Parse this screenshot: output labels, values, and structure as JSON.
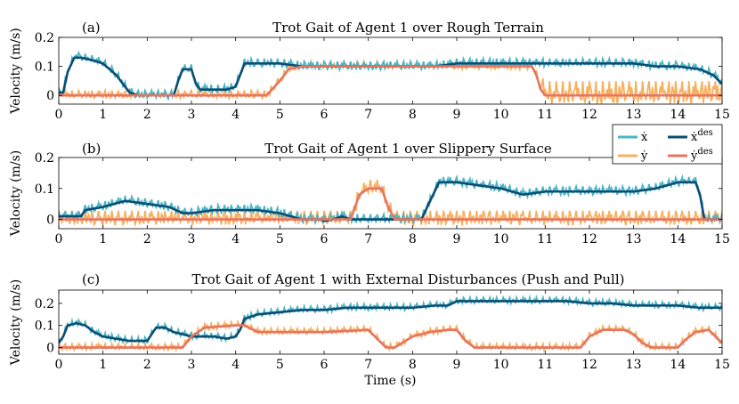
{
  "chart_data": [
    {
      "type": "line",
      "panel": "(a)",
      "title": "Trot Gait of Agent 1 over Rough Terrain",
      "xlabel": "",
      "ylabel": "Velocity (m/s)",
      "xlim": [
        0,
        15
      ],
      "ylim": [
        -0.03,
        0.2
      ],
      "xticks": [
        0,
        1,
        2,
        3,
        4,
        5,
        6,
        7,
        8,
        9,
        10,
        11,
        12,
        13,
        14,
        15
      ],
      "xticklabels": [
        "0",
        "1",
        "2",
        "3",
        "4",
        "5",
        "6",
        "7",
        "8",
        "9",
        "10",
        "11",
        "12",
        "13",
        "14",
        "15"
      ],
      "yticks": [
        0,
        0.1,
        0.2
      ],
      "yticklabels": [
        "0",
        "0.1",
        "0.2"
      ],
      "series": [
        {
          "name": "x_des",
          "color": "#0b4d73",
          "x": [
            0,
            0.1,
            0.2,
            0.35,
            0.5,
            0.8,
            1.0,
            1.3,
            1.5,
            1.6,
            1.8,
            2.0,
            2.3,
            2.6,
            2.7,
            2.8,
            3.0,
            3.1,
            3.2,
            3.5,
            3.8,
            4.0,
            4.1,
            4.2,
            4.5,
            4.8,
            5.0,
            5.5,
            6.0,
            6.5,
            7.0,
            7.5,
            8.0,
            8.5,
            9.0,
            9.5,
            10.0,
            10.5,
            11.0,
            11.5,
            12.0,
            12.5,
            13.0,
            13.5,
            14.0,
            14.5,
            14.8,
            15.0
          ],
          "y": [
            0.01,
            0.01,
            0.08,
            0.13,
            0.13,
            0.12,
            0.11,
            0.07,
            0.03,
            0.01,
            0.0,
            0.0,
            0.0,
            0.0,
            0.05,
            0.09,
            0.09,
            0.04,
            0.02,
            0.02,
            0.02,
            0.03,
            0.07,
            0.11,
            0.11,
            0.11,
            0.11,
            0.1,
            0.1,
            0.1,
            0.1,
            0.1,
            0.1,
            0.1,
            0.11,
            0.11,
            0.11,
            0.11,
            0.11,
            0.11,
            0.11,
            0.11,
            0.11,
            0.1,
            0.1,
            0.09,
            0.07,
            0.04
          ]
        },
        {
          "name": "y_des",
          "color": "#e67562",
          "x": [
            0,
            1,
            2,
            3,
            4,
            4.7,
            5.0,
            5.2,
            5.5,
            6,
            7,
            8,
            9,
            10,
            10.7,
            10.8,
            10.9,
            11.0,
            12,
            13,
            14,
            15
          ],
          "y": [
            0,
            0,
            0,
            0,
            0,
            0,
            0.05,
            0.09,
            0.1,
            0.1,
            0.1,
            0.1,
            0.1,
            0.1,
            0.1,
            0.07,
            0.02,
            0.0,
            0.0,
            0.0,
            0.0,
            0.0
          ]
        }
      ]
    },
    {
      "type": "line",
      "panel": "(b)",
      "title": "Trot Gait of Agent 1 over Slippery Surface",
      "xlabel": "",
      "ylabel": "Velocity (m/s)",
      "xlim": [
        0,
        15
      ],
      "ylim": [
        -0.03,
        0.2
      ],
      "xticks": [
        0,
        1,
        2,
        3,
        4,
        5,
        6,
        7,
        8,
        9,
        10,
        11,
        12,
        13,
        14,
        15
      ],
      "xticklabels": [
        "0",
        "1",
        "2",
        "3",
        "4",
        "5",
        "6",
        "7",
        "8",
        "9",
        "10",
        "11",
        "12",
        "13",
        "14",
        "15"
      ],
      "yticks": [
        0,
        0.1,
        0.2
      ],
      "yticklabels": [
        "0",
        "0.1",
        "0.2"
      ],
      "series": [
        {
          "name": "x_des",
          "color": "#0b4d73",
          "x": [
            0,
            0.5,
            0.6,
            1.0,
            1.5,
            2.0,
            2.5,
            2.8,
            3.0,
            3.5,
            4.0,
            4.5,
            5.0,
            5.5,
            5.9,
            6.0,
            6.2,
            6.4,
            6.6,
            7.0,
            7.5,
            8.0,
            8.2,
            8.4,
            8.6,
            9.0,
            9.5,
            10.0,
            10.5,
            11.0,
            11.5,
            12.0,
            12.5,
            13.0,
            13.5,
            14.0,
            14.4,
            14.5,
            14.6,
            15.0
          ],
          "y": [
            0.01,
            0.01,
            0.03,
            0.04,
            0.06,
            0.05,
            0.04,
            0.02,
            0.02,
            0.03,
            0.03,
            0.03,
            0.02,
            0.0,
            0.0,
            -0.005,
            0.0,
            0.01,
            0.0,
            0.0,
            0.0,
            0.0,
            0.0,
            0.06,
            0.12,
            0.12,
            0.11,
            0.1,
            0.08,
            0.09,
            0.09,
            0.09,
            0.09,
            0.09,
            0.1,
            0.12,
            0.12,
            0.08,
            0.0,
            0.0
          ]
        },
        {
          "name": "y_des",
          "color": "#e67562",
          "x": [
            0,
            3,
            6,
            6.6,
            6.8,
            7.0,
            7.3,
            7.45,
            7.6,
            8,
            9,
            10,
            11,
            12,
            13,
            14,
            15
          ],
          "y": [
            0,
            0,
            0,
            0,
            0.08,
            0.1,
            0.1,
            0.04,
            0.0,
            0,
            0,
            0,
            0,
            0,
            0,
            0,
            0
          ]
        }
      ]
    },
    {
      "type": "line",
      "panel": "(c)",
      "title": "Trot Gait of Agent 1 with External Disturbances (Push and Pull)",
      "xlabel": "Time (s)",
      "ylabel": "Velocity (m/s)",
      "xlim": [
        0,
        15
      ],
      "ylim": [
        -0.03,
        0.26
      ],
      "xticks": [
        0,
        1,
        2,
        3,
        4,
        5,
        6,
        7,
        8,
        9,
        10,
        11,
        12,
        13,
        14,
        15
      ],
      "xticklabels": [
        "0",
        "1",
        "2",
        "3",
        "4",
        "5",
        "6",
        "7",
        "8",
        "9",
        "10",
        "11",
        "12",
        "13",
        "14",
        "15"
      ],
      "yticks": [
        0,
        0.1,
        0.2
      ],
      "yticklabels": [
        "0",
        "0.1",
        "0.2"
      ],
      "series": [
        {
          "name": "x_des",
          "color": "#0b4d73",
          "x": [
            0,
            0.1,
            0.2,
            0.4,
            0.6,
            0.8,
            1.0,
            1.3,
            1.6,
            2.0,
            2.1,
            2.2,
            2.4,
            2.6,
            2.8,
            3.0,
            3.5,
            3.8,
            4.0,
            4.1,
            4.2,
            4.5,
            5.0,
            5.5,
            6.0,
            6.5,
            7.0,
            7.5,
            8.0,
            8.5,
            8.8,
            9.0,
            9.5,
            10.0,
            10.5,
            11.0,
            11.5,
            12.0,
            12.5,
            13.0,
            13.5,
            14.0,
            14.5,
            15.0
          ],
          "y": [
            0.02,
            0.05,
            0.1,
            0.11,
            0.1,
            0.07,
            0.05,
            0.04,
            0.03,
            0.03,
            0.06,
            0.09,
            0.09,
            0.07,
            0.06,
            0.05,
            0.05,
            0.04,
            0.05,
            0.08,
            0.13,
            0.15,
            0.16,
            0.17,
            0.17,
            0.18,
            0.18,
            0.18,
            0.18,
            0.19,
            0.19,
            0.21,
            0.21,
            0.21,
            0.21,
            0.21,
            0.21,
            0.2,
            0.2,
            0.19,
            0.19,
            0.19,
            0.18,
            0.18
          ]
        },
        {
          "name": "y_des",
          "color": "#e67562",
          "x": [
            0,
            1,
            2,
            2.8,
            3.0,
            3.3,
            4.0,
            4.2,
            4.5,
            5,
            6,
            7.0,
            7.2,
            7.4,
            7.6,
            8,
            8.4,
            8.8,
            9.0,
            9.2,
            9.4,
            10,
            11,
            11.8,
            12.0,
            12.3,
            12.8,
            13.0,
            13.2,
            13.4,
            14,
            14.2,
            14.4,
            14.7,
            15.0
          ],
          "y": [
            0,
            0,
            0,
            0,
            0.05,
            0.09,
            0.1,
            0.1,
            0.07,
            0.07,
            0.07,
            0.08,
            0.04,
            0.0,
            0.0,
            0.05,
            0.07,
            0.08,
            0.08,
            0.03,
            0.0,
            0.0,
            0.0,
            0.0,
            0.05,
            0.08,
            0.08,
            0.06,
            0.02,
            0.0,
            0.0,
            0.04,
            0.07,
            0.08,
            0.02
          ]
        }
      ]
    }
  ],
  "legend": {
    "placement": "right, between panels (a) and (b)",
    "entries": [
      {
        "label": "ẋ",
        "color": "#4bb5c6"
      },
      {
        "label": "ẋ",
        "sup": "des",
        "color": "#0b4d73"
      },
      {
        "label": "ẏ",
        "color": "#f7b05e"
      },
      {
        "label": "ẏ",
        "sup": "des",
        "color": "#e67562"
      }
    ]
  },
  "colors": {
    "x": "#4bb5c6",
    "x_des": "#0b4d73",
    "y": "#f7b05e",
    "y_des": "#e67562"
  },
  "noise_note": "measured traces oscillate around desired values"
}
